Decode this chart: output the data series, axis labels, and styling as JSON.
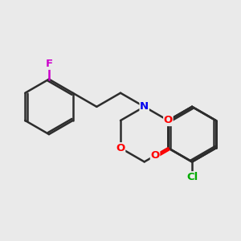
{
  "background_color": "#EAEAEA",
  "bond_color": "#2d2d2d",
  "bond_width": 1.8,
  "atom_colors": {
    "O": "#FF0000",
    "N": "#0000EE",
    "Cl": "#00AA00",
    "F": "#CC00CC"
  },
  "font_size": 9.5
}
